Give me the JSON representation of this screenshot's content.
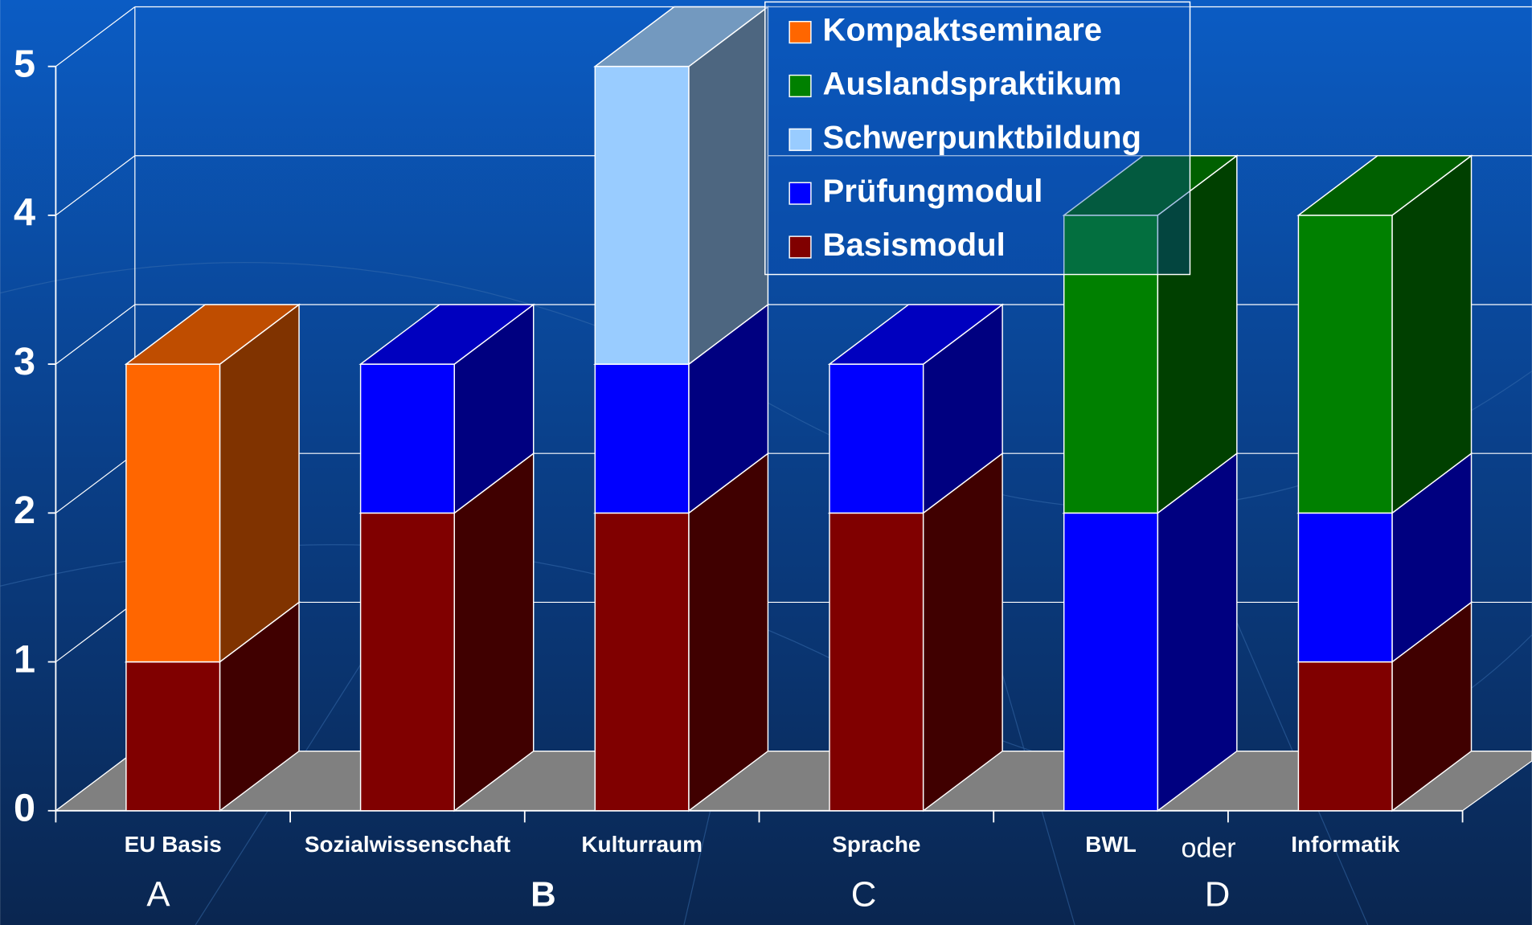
{
  "chart_data": {
    "type": "stacked_bar_3d",
    "categories": [
      "EU Basis",
      "Sozialwissenschaft",
      "Kulturraum",
      "Sprache",
      "BWL",
      "Informatik"
    ],
    "series": [
      {
        "name": "Basismodul",
        "color": "#800000",
        "values": [
          1,
          2,
          2,
          2,
          0,
          1
        ]
      },
      {
        "name": "Prüfungmodul",
        "color": "#0000ff",
        "values": [
          0,
          1,
          1,
          1,
          2,
          1
        ]
      },
      {
        "name": "Schwerpunktbildung",
        "color": "#99ccff",
        "values": [
          0,
          0,
          2,
          0,
          0,
          0
        ]
      },
      {
        "name": "Auslandspraktikum",
        "color": "#008000",
        "values": [
          0,
          0,
          0,
          0,
          2,
          2
        ]
      },
      {
        "name": "Kompaktseminare",
        "color": "#ff6600",
        "values": [
          2,
          0,
          0,
          0,
          0,
          0
        ]
      }
    ],
    "ylim": [
      0,
      5
    ],
    "yticks": [
      0,
      1,
      2,
      3,
      4,
      5
    ],
    "grid": true,
    "legend": "top-right",
    "annotations": [
      "oder",
      "A",
      "B",
      "C",
      "D"
    ]
  }
}
